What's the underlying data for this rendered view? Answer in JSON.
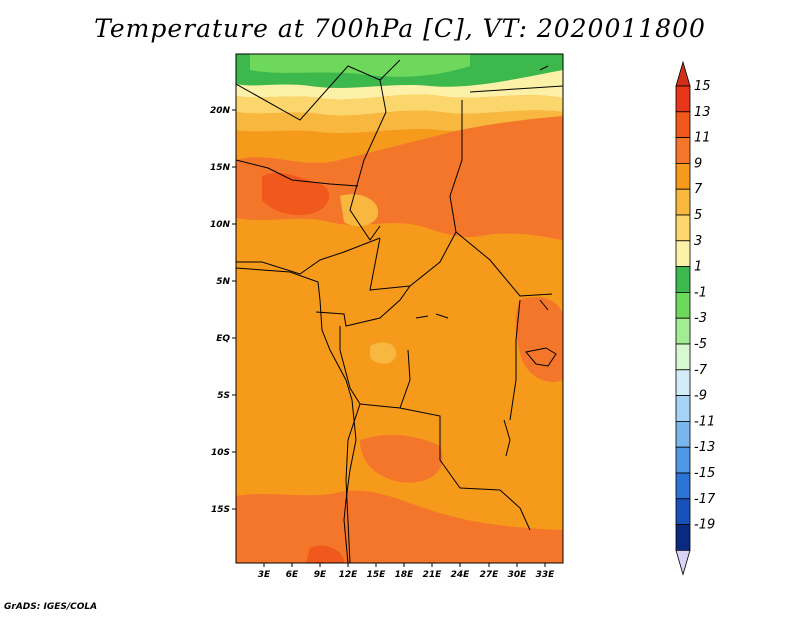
{
  "title": "Temperature at 700hPa [C], VT: 2020011800",
  "credit": "GrADS: IGES/COLA",
  "map": {
    "lat_labels": [
      "20N",
      "15N",
      "10N",
      "5N",
      "EQ",
      "5S",
      "10S",
      "15S"
    ],
    "lon_labels": [
      "3E",
      "6E",
      "9E",
      "12E",
      "15E",
      "18E",
      "21E",
      "24E",
      "27E",
      "30E",
      "33E"
    ]
  },
  "colorbar": {
    "labels": [
      "15",
      "13",
      "11",
      "9",
      "7",
      "5",
      "3",
      "1",
      "-1",
      "-3",
      "-5",
      "-7",
      "-9",
      "-11",
      "-13",
      "-15",
      "-17",
      "-19"
    ],
    "colors": [
      "#e8361a",
      "#f0581c",
      "#f3762a",
      "#f69a1c",
      "#f8b840",
      "#fbd66d",
      "#fdf1a8",
      "#3cb84c",
      "#6ed85c",
      "#a4ec94",
      "#d8f8d0",
      "#d4ecfa",
      "#a6d2f6",
      "#7ab6ee",
      "#4f98e6",
      "#2a74d6",
      "#1650b8",
      "#0a2a80"
    ],
    "top_arrow_color": "#d0301a",
    "bottom_arrow_color": "#d8d4f6"
  }
}
